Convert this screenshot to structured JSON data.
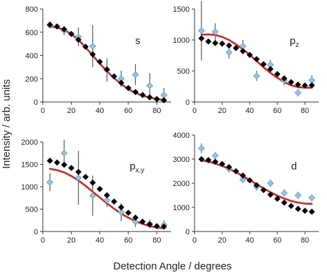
{
  "figure": {
    "ylabel": "Intensity / arb. units",
    "xlabel": "Detection Angle / degrees"
  },
  "colors": {
    "measured": "#8EC3EA",
    "measured_edge": "#5E95C4",
    "calc_diamond": "#000000",
    "fit_line": "#E0201B",
    "errorbar": "#333333"
  },
  "chart_data": [
    {
      "type": "scatter",
      "panel_label": "s",
      "label_sub": "",
      "xlim": [
        0,
        90
      ],
      "xticks": [
        0,
        20,
        40,
        60,
        80
      ],
      "ylim": [
        0,
        800
      ],
      "yticks": [
        0,
        200,
        400,
        600,
        800
      ],
      "diamonds": {
        "x": [
          5,
          10,
          15,
          20,
          25,
          30,
          35,
          40,
          45,
          50,
          55,
          60,
          65,
          70,
          75,
          80,
          85
        ],
        "y": [
          665,
          650,
          625,
          585,
          535,
          475,
          410,
          345,
          280,
          220,
          165,
          120,
          85,
          60,
          40,
          25,
          15
        ]
      },
      "fit": {
        "x": [
          5,
          10,
          15,
          20,
          25,
          30,
          35,
          40,
          45,
          50,
          55,
          60,
          65,
          70,
          75,
          80,
          85
        ],
        "y": [
          650,
          640,
          620,
          585,
          535,
          470,
          400,
          330,
          265,
          205,
          155,
          110,
          78,
          55,
          38,
          25,
          18
        ]
      },
      "measured": {
        "x": [
          5,
          15,
          25,
          35,
          45,
          55,
          65,
          75,
          85
        ],
        "y": [
          660,
          615,
          560,
          480,
          275,
          200,
          235,
          140,
          60
        ],
        "err": [
          0,
          40,
          80,
          180,
          100,
          70,
          90,
          110,
          60
        ]
      }
    },
    {
      "type": "scatter",
      "panel_label": "p",
      "label_sub": "z",
      "xlim": [
        0,
        90
      ],
      "xticks": [
        0,
        20,
        40,
        60,
        80
      ],
      "ylim": [
        0,
        1500
      ],
      "yticks": [
        0,
        500,
        1000,
        1500
      ],
      "diamonds": {
        "x": [
          5,
          10,
          15,
          20,
          25,
          30,
          35,
          40,
          45,
          50,
          55,
          60,
          65,
          70,
          75,
          80,
          85
        ],
        "y": [
          1025,
          975,
          950,
          940,
          910,
          870,
          820,
          760,
          690,
          610,
          530,
          450,
          380,
          320,
          280,
          265,
          270
        ]
      },
      "fit": {
        "x": [
          5,
          10,
          15,
          20,
          25,
          30,
          35,
          40,
          45,
          50,
          55,
          60,
          65,
          70,
          75,
          80,
          85
        ],
        "y": [
          1085,
          1090,
          1080,
          1050,
          1000,
          930,
          850,
          760,
          660,
          560,
          470,
          390,
          320,
          270,
          240,
          230,
          230
        ]
      },
      "measured": {
        "x": [
          5,
          15,
          25,
          35,
          45,
          55,
          65,
          75,
          85
        ],
        "y": [
          1150,
          1130,
          800,
          900,
          420,
          600,
          350,
          150,
          350
        ],
        "err": [
          480,
          140,
          100,
          100,
          80,
          80,
          80,
          60,
          80
        ]
      }
    },
    {
      "type": "scatter",
      "panel_label": "p",
      "label_sub": "x,y",
      "xlim": [
        0,
        90
      ],
      "xticks": [
        0,
        20,
        40,
        60,
        80
      ],
      "ylim": [
        0,
        2000
      ],
      "yticks": [
        0,
        500,
        1000,
        1500,
        2000
      ],
      "diamonds": {
        "x": [
          5,
          10,
          15,
          20,
          25,
          30,
          35,
          40,
          45,
          50,
          55,
          60,
          65,
          70,
          75,
          80,
          85
        ],
        "y": [
          1580,
          1540,
          1490,
          1420,
          1330,
          1220,
          1090,
          950,
          810,
          670,
          540,
          420,
          310,
          220,
          160,
          120,
          110
        ]
      },
      "fit": {
        "x": [
          5,
          10,
          15,
          20,
          25,
          30,
          35,
          40,
          45,
          50,
          55,
          60,
          65,
          70,
          75,
          80,
          85
        ],
        "y": [
          1400,
          1370,
          1320,
          1240,
          1140,
          1020,
          890,
          760,
          630,
          510,
          400,
          310,
          230,
          170,
          120,
          90,
          70
        ]
      },
      "measured": {
        "x": [
          5,
          15,
          25,
          35,
          45,
          55,
          65,
          75,
          85
        ],
        "y": [
          1100,
          1750,
          1200,
          800,
          700,
          430,
          220,
          170,
          150
        ],
        "err": [
          200,
          300,
          600,
          450,
          150,
          200,
          120,
          100,
          100
        ]
      }
    },
    {
      "type": "scatter",
      "panel_label": "d",
      "label_sub": "",
      "xlim": [
        0,
        90
      ],
      "xticks": [
        0,
        20,
        40,
        60,
        80
      ],
      "ylim": [
        0,
        4000
      ],
      "yticks": [
        0,
        1000,
        2000,
        3000,
        4000
      ],
      "diamonds": {
        "x": [
          5,
          10,
          15,
          20,
          25,
          30,
          35,
          40,
          45,
          50,
          55,
          60,
          65,
          70,
          75,
          80,
          85
        ],
        "y": [
          3000,
          2960,
          2890,
          2800,
          2670,
          2500,
          2320,
          2120,
          1920,
          1720,
          1530,
          1360,
          1200,
          1060,
          940,
          860,
          820
        ]
      },
      "fit": {
        "x": [
          5,
          10,
          15,
          20,
          25,
          30,
          35,
          40,
          45,
          50,
          55,
          60,
          65,
          70,
          75,
          80,
          85
        ],
        "y": [
          2950,
          2900,
          2820,
          2720,
          2600,
          2460,
          2300,
          2130,
          1960,
          1790,
          1630,
          1490,
          1370,
          1270,
          1200,
          1160,
          1150
        ]
      },
      "measured": {
        "x": [
          5,
          15,
          25,
          35,
          45,
          55,
          65,
          75,
          85
        ],
        "y": [
          3450,
          3150,
          2600,
          2150,
          1850,
          2000,
          1600,
          1500,
          1400
        ],
        "err": [
          200,
          150,
          150,
          150,
          150,
          150,
          150,
          150,
          150
        ]
      }
    }
  ]
}
